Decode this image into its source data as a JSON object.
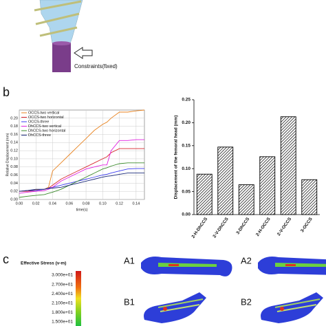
{
  "panels": {
    "a_constraint": "Constraints(fixed)",
    "b_label": "b",
    "c_label": "c",
    "stress_title": "Effective Stress (v-m)",
    "stress_levels": [
      "3.000e+01",
      "2.700e+01",
      "2.400e+01",
      "2.100e+01",
      "1.800e+01",
      "1.500e+01"
    ],
    "views": [
      "A1",
      "A2",
      "B1",
      "B2"
    ]
  },
  "chart_data": [
    {
      "type": "line",
      "x_label": "time(s)",
      "y_label": "Relative Displacement (mm)",
      "x": [
        0,
        0.01,
        0.02,
        0.03,
        0.035,
        0.04,
        0.05,
        0.06,
        0.07,
        0.08,
        0.09,
        0.1,
        0.105,
        0.11,
        0.12,
        0.13,
        0.14,
        0.15
      ],
      "xlim": [
        0,
        0.15
      ],
      "xticks": [
        {
          "value": 0,
          "label": "0.00"
        },
        {
          "value": 0.02,
          "label": "0.02"
        },
        {
          "value": 0.04,
          "label": "0.04"
        },
        {
          "value": 0.06,
          "label": "0.06"
        },
        {
          "value": 0.08,
          "label": "0.08"
        },
        {
          "value": 0.1,
          "label": "0.10"
        },
        {
          "value": 0.12,
          "label": "0.12"
        },
        {
          "value": 0.14,
          "label": "0.14"
        }
      ],
      "ylim": [
        0,
        0.22
      ],
      "yticks": [
        {
          "value": 0,
          "label": "0.00"
        },
        {
          "value": 0.02,
          "label": "0.02"
        },
        {
          "value": 0.04,
          "label": "0.04"
        },
        {
          "value": 0.06,
          "label": "0.06"
        },
        {
          "value": 0.08,
          "label": "0.08"
        },
        {
          "value": 0.1,
          "label": "0.10"
        },
        {
          "value": 0.12,
          "label": "0.12"
        },
        {
          "value": 0.14,
          "label": "0.14"
        },
        {
          "value": 0.16,
          "label": "0.16"
        },
        {
          "value": 0.18,
          "label": "0.18"
        },
        {
          "value": 0.2,
          "label": "0.20"
        }
      ],
      "grid": true,
      "series": [
        {
          "name": "OCCS-two vertical",
          "color": "#e8821e",
          "values": [
            0.02,
            0.022,
            0.024,
            0.025,
            0.03,
            0.07,
            0.09,
            0.11,
            0.13,
            0.15,
            0.17,
            0.185,
            0.19,
            0.2,
            0.215,
            0.215,
            0.218,
            0.22
          ]
        },
        {
          "name": "OCCS-two horizontal",
          "color": "#d9232d",
          "values": [
            0.02,
            0.02,
            0.022,
            0.025,
            0.028,
            0.035,
            0.05,
            0.06,
            0.07,
            0.08,
            0.09,
            0.1,
            0.105,
            0.115,
            0.125,
            0.125,
            0.125,
            0.125
          ]
        },
        {
          "name": "OCCS-three",
          "color": "#3a3af0",
          "values": [
            0.02,
            0.022,
            0.022,
            0.025,
            0.028,
            0.03,
            0.035,
            0.04,
            0.045,
            0.05,
            0.055,
            0.06,
            0.062,
            0.065,
            0.07,
            0.075,
            0.076,
            0.076
          ]
        },
        {
          "name": "DhCCS-two vertical",
          "color": "#e020e0",
          "values": [
            0.015,
            0.018,
            0.02,
            0.022,
            0.025,
            0.03,
            0.045,
            0.055,
            0.065,
            0.075,
            0.08,
            0.085,
            0.085,
            0.12,
            0.145,
            0.145,
            0.147,
            0.147
          ]
        },
        {
          "name": "DhCCS-two horizontal",
          "color": "#3a8a2a",
          "values": [
            0.005,
            0.008,
            0.01,
            0.012,
            0.015,
            0.018,
            0.025,
            0.035,
            0.045,
            0.055,
            0.065,
            0.075,
            0.078,
            0.082,
            0.088,
            0.09,
            0.09,
            0.09
          ]
        },
        {
          "name": "DhCCS-three",
          "color": "#1a2a7a",
          "values": [
            0.02,
            0.022,
            0.025,
            0.025,
            0.027,
            0.028,
            0.03,
            0.035,
            0.04,
            0.045,
            0.05,
            0.055,
            0.057,
            0.058,
            0.062,
            0.065,
            0.065,
            0.065
          ]
        }
      ]
    },
    {
      "type": "bar",
      "y_label": "Displacement of the femoral head (mm)",
      "categories": [
        "2-H-DhCCS",
        "2-V-DhCCS",
        "3-DhCCS",
        "2-H-OCCS",
        "2-V-OCCS",
        "3-OCCS"
      ],
      "values": [
        0.088,
        0.147,
        0.065,
        0.126,
        0.213,
        0.076
      ],
      "ylim": [
        0,
        0.25
      ],
      "yticks": [
        {
          "value": 0,
          "label": "0.00"
        },
        {
          "value": 0.05,
          "label": "0.05"
        },
        {
          "value": 0.1,
          "label": "0.10"
        },
        {
          "value": 0.15,
          "label": "0.15"
        },
        {
          "value": 0.2,
          "label": "0.20"
        },
        {
          "value": 0.25,
          "label": "0.25"
        }
      ],
      "color": "#ffffff"
    }
  ]
}
